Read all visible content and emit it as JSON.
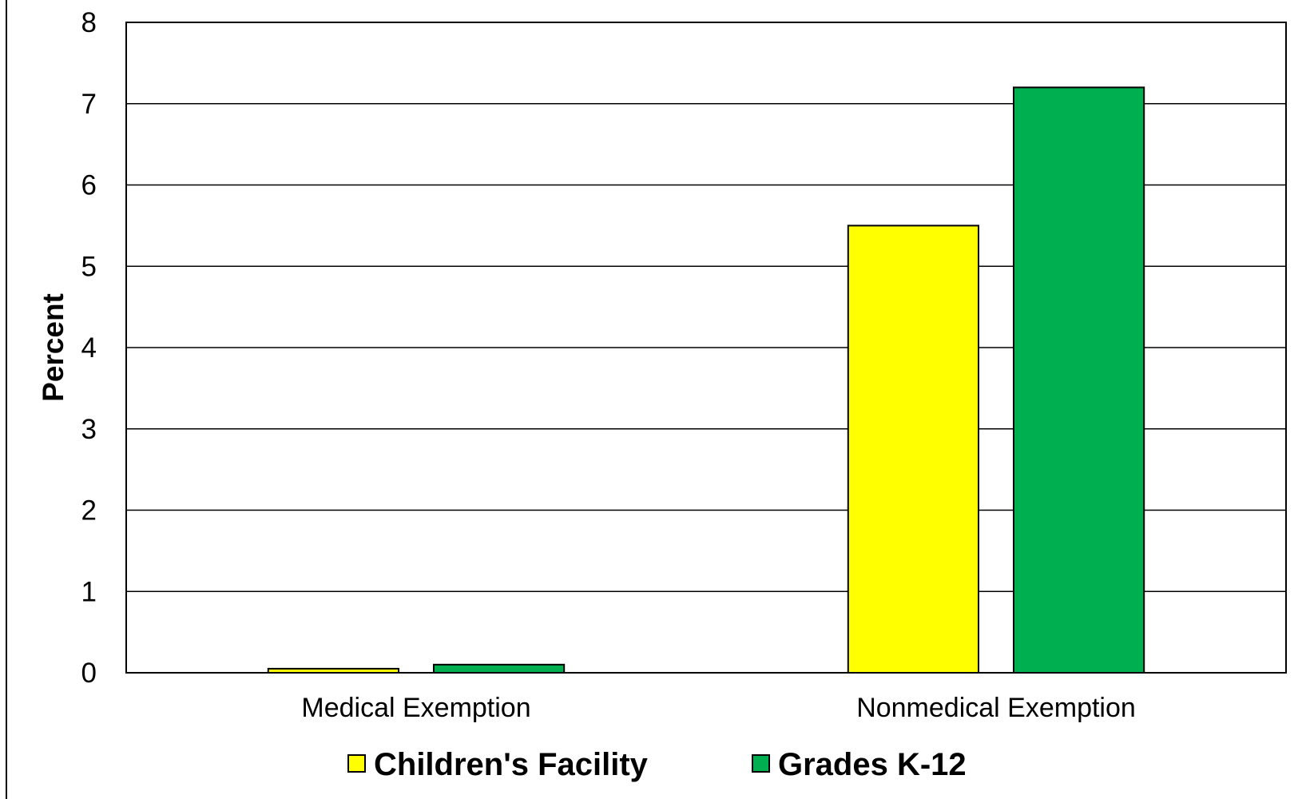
{
  "chart_data": {
    "type": "bar",
    "categories": [
      "Medical Exemption",
      "Nonmedical Exemption"
    ],
    "series": [
      {
        "name": "Children's Facility",
        "values": [
          0.05,
          5.5
        ],
        "color": "#FFFF00"
      },
      {
        "name": "Grades K-12",
        "values": [
          0.1,
          7.2
        ],
        "color": "#00B050"
      }
    ],
    "xlabel": "",
    "ylabel": "Percent",
    "ylim": [
      0,
      8
    ],
    "yticks": [
      "0",
      "1",
      "2",
      "3",
      "4",
      "5",
      "6",
      "7",
      "8"
    ],
    "grid": true,
    "legend_position": "bottom"
  }
}
